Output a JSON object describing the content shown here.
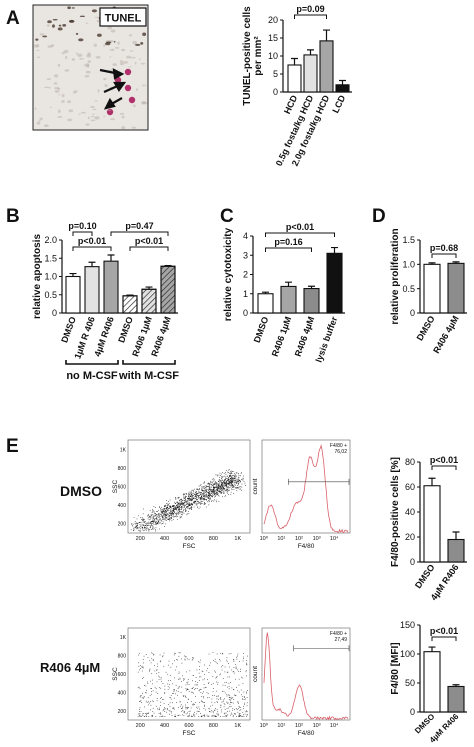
{
  "panels": [
    "A",
    "B",
    "C",
    "D",
    "E"
  ],
  "micrograph": {
    "label": "TUNEL"
  },
  "row_labels": [
    "DMSO",
    "R406 4µM"
  ],
  "flow_plots": [
    {
      "x_label": "FSC",
      "y_label": "SSC",
      "ticks": [
        "200",
        "400",
        "600",
        "800",
        "1K"
      ]
    },
    {
      "x_label": "F4/80",
      "y_label": "count",
      "ticks": [
        "10⁰",
        "10¹",
        "10²",
        "10³",
        "10⁴"
      ],
      "gate": "F4/80 +",
      "gate_value": "76,02"
    },
    {
      "x_label": "FSC",
      "y_label": "SSC",
      "ticks": [
        "200",
        "400",
        "600",
        "800",
        "1K"
      ]
    },
    {
      "x_label": "F4/80",
      "y_label": "count",
      "ticks": [
        "10⁰",
        "10¹",
        "10²",
        "10³",
        "10⁴"
      ],
      "gate": "F4/80 +",
      "gate_value": "27,49"
    }
  ],
  "chart_data": [
    {
      "type": "bar",
      "ylabel": [
        "TUNEL-positive cells",
        "per mm²"
      ],
      "categories": [
        "HCD",
        "0.5g fosta/kg HCD",
        "2.0g fosta/kg HCD",
        "LCD"
      ],
      "values": [
        7.5,
        10.3,
        14.2,
        2
      ],
      "errors": [
        1.8,
        1.4,
        3,
        1.2
      ],
      "colors": [
        "#ffffff",
        "#e2e2e2",
        "#a6a6a6",
        "#111111"
      ],
      "hatched": [
        false,
        false,
        false,
        false
      ],
      "ylim": [
        0,
        20
      ],
      "yticks": [
        0,
        5,
        10,
        15,
        20
      ],
      "annotations": [
        "p=0.09"
      ]
    },
    {
      "type": "bar",
      "ylabel": [
        "relative apoptosis"
      ],
      "categories": [
        "DMSO",
        "1µM R 406",
        "4µM R406",
        "DMSO",
        "R406 1µM",
        "R406 4µM"
      ],
      "values": [
        1.0,
        1.27,
        1.42,
        0.47,
        0.65,
        1.28
      ],
      "errors": [
        0.08,
        0.12,
        0.17,
        0.02,
        0.06,
        0.02
      ],
      "colors": [
        "#ffffff",
        "#e2e2e2",
        "#a6a6a6",
        "#ffffff",
        "#e2e2e2",
        "#a6a6a6"
      ],
      "hatched": [
        false,
        false,
        false,
        true,
        true,
        true
      ],
      "ylim": [
        0,
        2
      ],
      "yticks": [
        0,
        {
          "value": 0.5,
          "label": "0.5"
        },
        {
          "value": 1,
          "label": "1.0"
        },
        {
          "value": 1.5,
          "label": "1.5"
        },
        {
          "value": 2,
          "label": "2.0"
        }
      ],
      "annotations": [
        "p=0.10",
        "p<0.01",
        "p=0.47",
        "p<0.01"
      ],
      "groups": [
        "no M-CSF",
        "with M-CSF"
      ]
    },
    {
      "type": "bar",
      "ylabel": [
        "relative cytotoxicity"
      ],
      "categories": [
        "DMSO",
        "R406 1µM",
        "R406 4µM",
        "lysis buffer"
      ],
      "values": [
        1.0,
        1.38,
        1.27,
        3.1
      ],
      "errors": [
        0.08,
        0.22,
        0.12,
        0.3
      ],
      "colors": [
        "#ffffff",
        "#a6a6a6",
        "#8c8c8c",
        "#111111"
      ],
      "hatched": [
        false,
        false,
        false,
        false
      ],
      "ylim": [
        0,
        4
      ],
      "yticks": [
        0,
        1,
        2,
        3,
        4
      ],
      "annotations": [
        "p<0.01",
        "p=0.16"
      ]
    },
    {
      "type": "bar",
      "ylabel": [
        "relative proliferation"
      ],
      "categories": [
        "DMSO",
        "R406 4µM"
      ],
      "values": [
        1.0,
        1.02
      ],
      "errors": [
        0.03,
        0.03
      ],
      "colors": [
        "#ffffff",
        "#8c8c8c"
      ],
      "hatched": [
        false,
        false
      ],
      "ylim": [
        0,
        1.5
      ],
      "yticks": [
        0,
        {
          "value": 0.5,
          "label": "0.5"
        },
        {
          "value": 1,
          "label": "1.0"
        },
        {
          "value": 1.5,
          "label": "1.5"
        }
      ],
      "annotations": [
        "p=0.68"
      ]
    },
    {
      "type": "bar",
      "ylabel": [
        "F4/80-positive cells [%]"
      ],
      "categories": [
        "DMSO",
        "4µM R406"
      ],
      "values": [
        61,
        18
      ],
      "errors": [
        6,
        6
      ],
      "colors": [
        "#ffffff",
        "#8c8c8c"
      ],
      "hatched": [
        false,
        false
      ],
      "ylim": [
        0,
        80
      ],
      "yticks": [
        0,
        20,
        40,
        60,
        80
      ],
      "annotations": [
        "p<0.01"
      ]
    },
    {
      "type": "bar",
      "ylabel": [
        "F4/80 [MFI]"
      ],
      "categories": [
        "DMSO",
        "4µM R406"
      ],
      "values": [
        104,
        44
      ],
      "errors": [
        8,
        3
      ],
      "colors": [
        "#ffffff",
        "#8c8c8c"
      ],
      "hatched": [
        false,
        false
      ],
      "ylim": [
        0,
        150
      ],
      "yticks": [
        0,
        50,
        100,
        150
      ],
      "annotations": [
        "p<0.01"
      ]
    }
  ]
}
